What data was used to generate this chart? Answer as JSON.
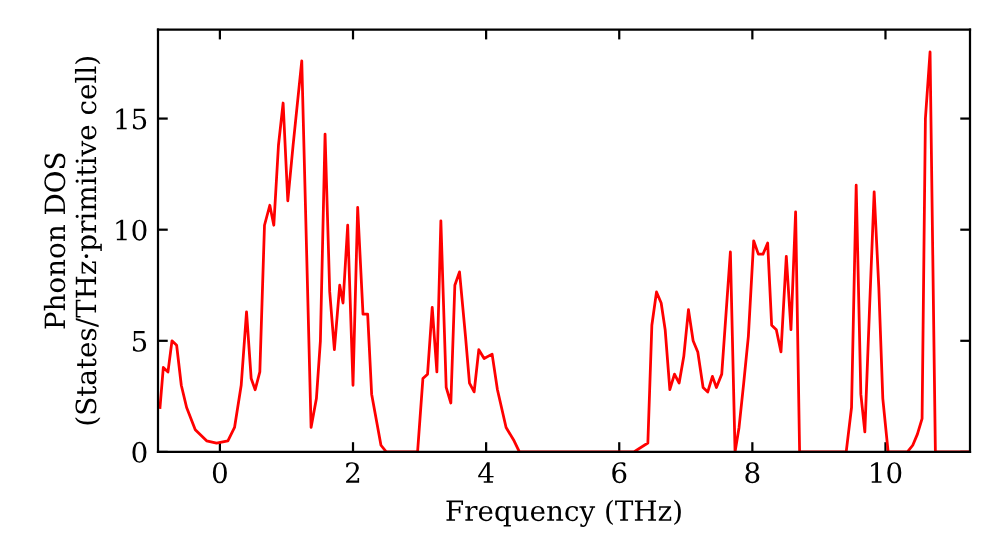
{
  "chart_data": {
    "type": "line",
    "xlabel": "Frequency (THz)",
    "ylabel": "Phonon DOS\n(States/THz·primitive cell)",
    "xlim": [
      -0.93,
      11.27
    ],
    "ylim": [
      0,
      19
    ],
    "xticks": [
      0,
      2,
      4,
      6,
      8,
      10
    ],
    "yticks": [
      0,
      5,
      10,
      15
    ],
    "grid": false,
    "marker": "none",
    "line_style": "solid",
    "series": [
      {
        "color": "#ff0000",
        "x": [
          -0.9,
          -0.85,
          -0.78,
          -0.72,
          -0.65,
          -0.58,
          -0.5,
          -0.37,
          -0.2,
          -0.05,
          0.12,
          0.22,
          0.32,
          0.4,
          0.47,
          0.53,
          0.6,
          0.67,
          0.75,
          0.81,
          0.88,
          0.95,
          1.02,
          1.1,
          1.23,
          1.37,
          1.45,
          1.51,
          1.58,
          1.65,
          1.72,
          1.8,
          1.85,
          1.92,
          2.0,
          2.07,
          2.15,
          2.22,
          2.28,
          2.42,
          2.5,
          2.97,
          3.05,
          3.12,
          3.19,
          3.26,
          3.32,
          3.4,
          3.47,
          3.53,
          3.6,
          3.69,
          3.75,
          3.82,
          3.89,
          3.97,
          4.09,
          4.17,
          4.3,
          4.42,
          4.5,
          6.22,
          6.43,
          6.49,
          6.56,
          6.63,
          6.69,
          6.76,
          6.83,
          6.9,
          6.97,
          7.04,
          7.11,
          7.18,
          7.26,
          7.33,
          7.4,
          7.46,
          7.54,
          7.67,
          7.74,
          7.8,
          7.87,
          7.94,
          8.02,
          8.09,
          8.16,
          8.23,
          8.29,
          8.36,
          8.43,
          8.51,
          8.58,
          8.65,
          8.71,
          9.41,
          9.49,
          9.56,
          9.63,
          9.69,
          9.76,
          9.83,
          9.9,
          9.96,
          10.04,
          10.33,
          10.41,
          10.48,
          10.55,
          10.6,
          10.67,
          10.75,
          11.26
        ],
        "values": [
          2.0,
          3.8,
          3.6,
          5.0,
          4.8,
          3.0,
          2.0,
          1.0,
          0.5,
          0.4,
          0.5,
          1.1,
          3.0,
          6.3,
          3.3,
          2.8,
          3.6,
          10.2,
          11.1,
          10.2,
          13.8,
          15.7,
          11.3,
          13.8,
          17.6,
          1.1,
          2.4,
          5.0,
          14.3,
          7.2,
          4.6,
          7.5,
          6.7,
          10.2,
          3.0,
          11.0,
          6.2,
          6.2,
          2.6,
          0.3,
          0,
          0,
          3.3,
          3.5,
          6.5,
          3.6,
          10.4,
          2.9,
          2.2,
          7.5,
          8.1,
          5.2,
          3.1,
          2.7,
          4.6,
          4.2,
          4.4,
          2.8,
          1.1,
          0.5,
          0,
          0,
          0.4,
          5.7,
          7.2,
          6.7,
          5.5,
          2.8,
          3.5,
          3.1,
          4.3,
          6.4,
          5.0,
          4.5,
          2.9,
          2.7,
          3.4,
          2.9,
          3.5,
          9.0,
          0,
          1.1,
          3.1,
          5.2,
          9.5,
          8.9,
          8.9,
          9.4,
          5.7,
          5.5,
          4.5,
          8.8,
          5.5,
          10.8,
          0,
          0,
          2.0,
          12.0,
          2.6,
          0.9,
          6.4,
          11.7,
          7.4,
          2.4,
          0,
          0,
          0.3,
          0.8,
          1.5,
          15.0,
          18.0,
          0,
          0
        ]
      }
    ]
  }
}
